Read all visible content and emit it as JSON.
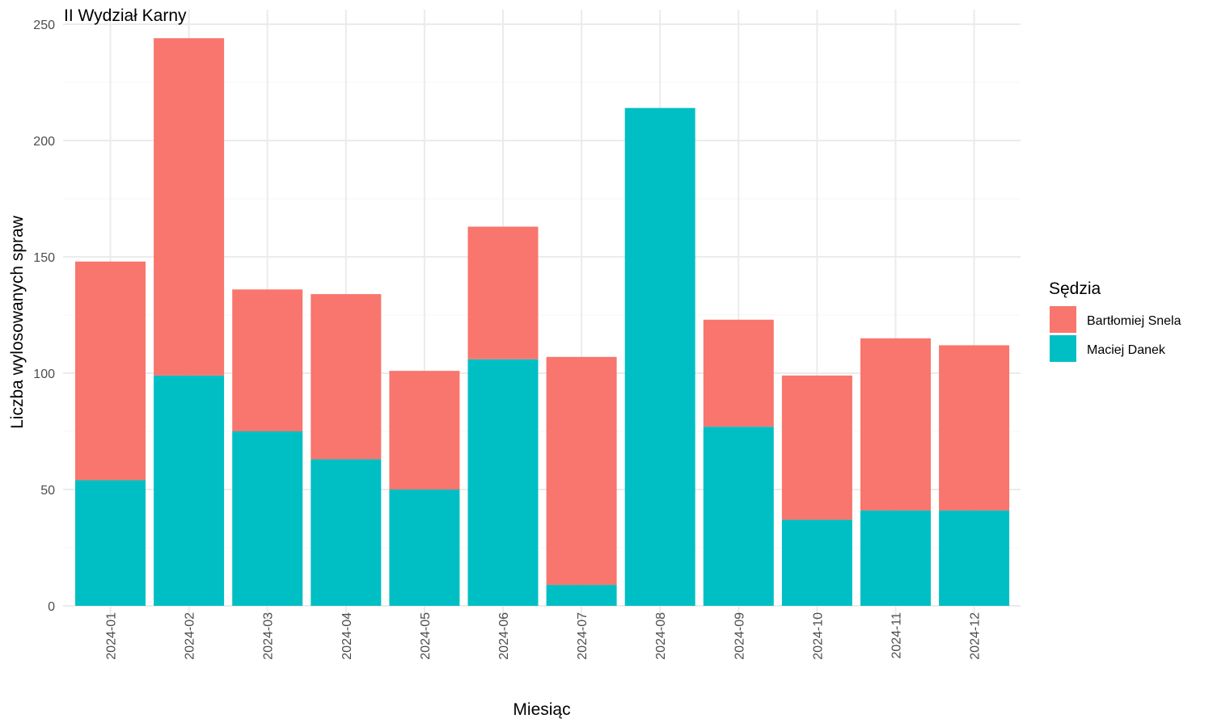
{
  "chart_data": {
    "type": "bar",
    "stacked": true,
    "title": "II Wydział Karny",
    "xlabel": "Miesiąc",
    "ylabel": "Liczba wylosowanych spraw",
    "ylim": [
      0,
      250
    ],
    "yticks": [
      0,
      50,
      100,
      150,
      200,
      250
    ],
    "grid": true,
    "legend": {
      "title": "Sędzia",
      "position": "right"
    },
    "categories": [
      "2024-01",
      "2024-02",
      "2024-03",
      "2024-04",
      "2024-05",
      "2024-06",
      "2024-07",
      "2024-08",
      "2024-09",
      "2024-10",
      "2024-11",
      "2024-12"
    ],
    "series": [
      {
        "name": "Bartłomiej Snela",
        "color": "#F8766D",
        "values": [
          94,
          145,
          61,
          71,
          51,
          57,
          98,
          0,
          46,
          62,
          74,
          71
        ]
      },
      {
        "name": "Maciej Danek",
        "color": "#00BFC4",
        "values": [
          54,
          99,
          75,
          63,
          50,
          106,
          9,
          214,
          77,
          37,
          41,
          41
        ]
      }
    ]
  }
}
